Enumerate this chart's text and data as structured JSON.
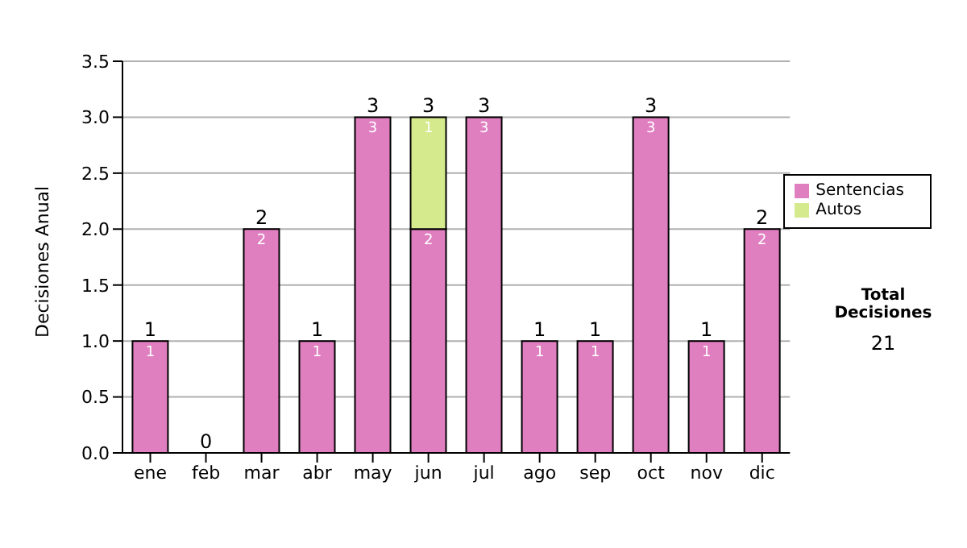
{
  "chart_data": {
    "type": "bar",
    "ylabel": "Decisiones Anual",
    "categories": [
      "ene",
      "feb",
      "mar",
      "abr",
      "may",
      "jun",
      "jul",
      "ago",
      "sep",
      "oct",
      "nov",
      "dic"
    ],
    "series": [
      {
        "name": "Sentencias",
        "color": "#e07fc0",
        "values": [
          1,
          0,
          2,
          1,
          3,
          2,
          3,
          1,
          1,
          3,
          1,
          2
        ],
        "value_labels": [
          "1",
          null,
          "2",
          "1",
          "3",
          "2",
          "3",
          "1",
          "1",
          "3",
          "1",
          "2"
        ]
      },
      {
        "name": "Autos",
        "color": "#d4ea8c",
        "values": [
          0,
          0,
          0,
          0,
          0,
          1,
          0,
          0,
          0,
          0,
          0,
          0
        ],
        "value_labels": [
          null,
          null,
          null,
          null,
          null,
          "1",
          null,
          null,
          null,
          null,
          null,
          null
        ]
      }
    ],
    "stacked": true,
    "totals": [
      "1",
      "0",
      "2",
      "1",
      "3",
      "3",
      "3",
      "1",
      "1",
      "3",
      "1",
      "2"
    ],
    "ylim": [
      0,
      3.5
    ],
    "yticks": [
      {
        "value": 0,
        "label": "0.0"
      },
      {
        "value": 0.5,
        "label": "0.5"
      },
      {
        "value": 1,
        "label": "1.0"
      },
      {
        "value": 1.5,
        "label": "1.5"
      },
      {
        "value": 2,
        "label": "2.0"
      },
      {
        "value": 2.5,
        "label": "2.5"
      },
      {
        "value": 3,
        "label": "3.0"
      },
      {
        "value": 3.5,
        "label": "3.5"
      }
    ],
    "grid": "y",
    "legend": "right",
    "annotations": [
      "Total Decisiones",
      "21"
    ]
  }
}
